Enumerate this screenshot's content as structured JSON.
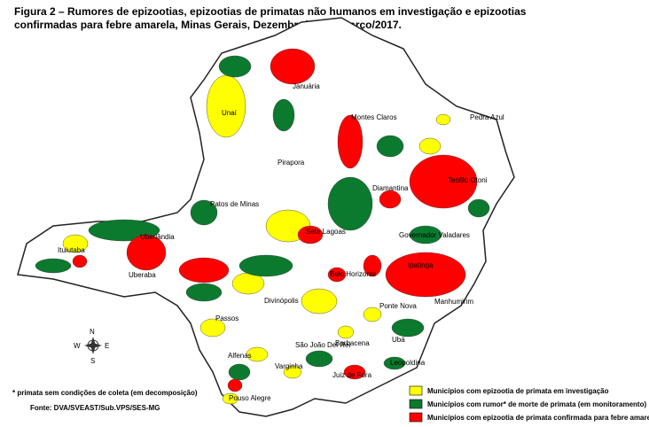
{
  "title": "Figura 2 – Rumores de epizootias, epizootias de primatas não humanos em investigação e epizootias confirmadas para febre amarela, Minas Gerais, Dezembro/2016 - Março/2017.",
  "cities": [
    "Januária",
    "Unaí",
    "Montes Claros",
    "Pedra Azul",
    "Pirapora",
    "Teófilo Otoni",
    "Diamantina",
    "Patos de Minas",
    "Sete Lagoas",
    "Governador Valadares",
    "Ituiutaba",
    "Uberlândia",
    "Uberaba",
    "Belo Horizonte",
    "Ipatinga",
    "Manhumirim",
    "Ponte Nova",
    "Divinópolis",
    "Passos",
    "São João Del Rei",
    "Barbacena",
    "Ubá",
    "Alfenas",
    "Varginha",
    "Juiz de Fora",
    "Leopoldina",
    "Pouso Alegre"
  ],
  "compass": {
    "n": "N",
    "s": "S",
    "e": "E",
    "w": "W"
  },
  "footnote": "* primata sem condições de coleta (em decomposição)",
  "source": "Fonte: DVA/SVEAST/Sub.VPS/SES-MG",
  "legend": [
    {
      "label": "Municípios com epizootia de primata em investigação",
      "color": "#ffff00"
    },
    {
      "label": "Municípios com rumor* de morte de primata (em monitoramento)",
      "color": "#0b7a2e"
    },
    {
      "label": "Municípios com epizootia de primata confirmada para febre amarela",
      "color": "#ff0000"
    }
  ]
}
